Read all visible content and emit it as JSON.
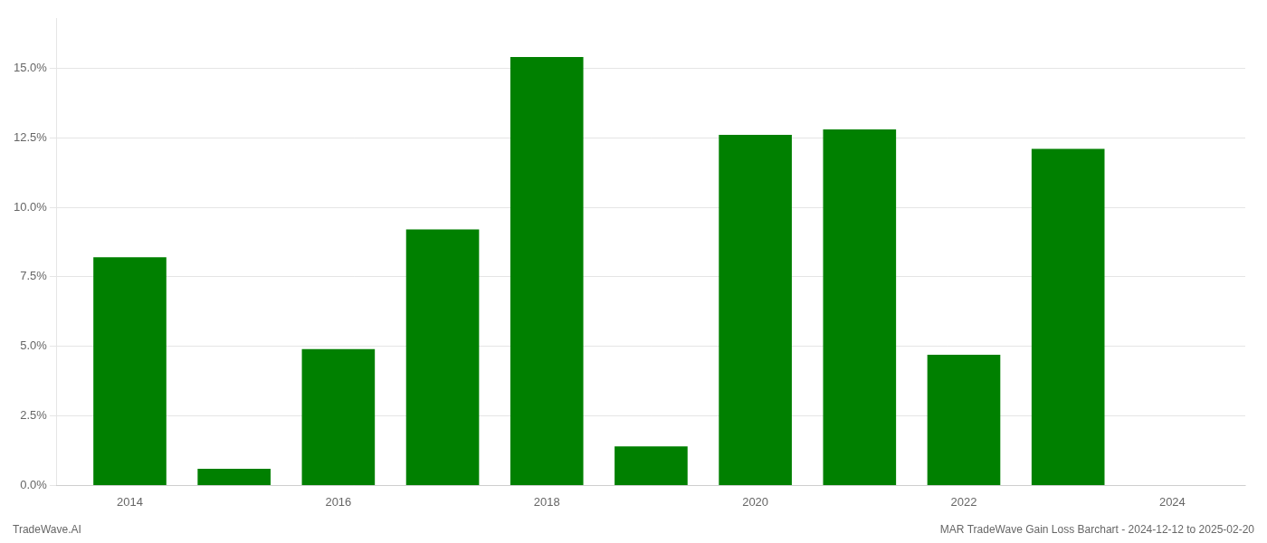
{
  "chart_data": {
    "type": "bar",
    "x": [
      2014,
      2015,
      2016,
      2017,
      2018,
      2019,
      2020,
      2021,
      2022,
      2023
    ],
    "values": [
      0.082,
      0.006,
      0.049,
      0.092,
      0.154,
      0.014,
      0.126,
      0.128,
      0.047,
      0.121
    ],
    "color": "#008000",
    "xlim": [
      2013.3,
      2024.7
    ],
    "xticks": [
      2014,
      2016,
      2018,
      2020,
      2022,
      2024
    ],
    "ylim": [
      0,
      0.168
    ],
    "yticks": [
      {
        "value": 0.0,
        "label": "0.0%"
      },
      {
        "value": 0.025,
        "label": "2.5%"
      },
      {
        "value": 0.05,
        "label": "5.0%"
      },
      {
        "value": 0.075,
        "label": "7.5%"
      },
      {
        "value": 0.1,
        "label": "10.0%"
      },
      {
        "value": 0.125,
        "label": "12.5%"
      },
      {
        "value": 0.15,
        "label": "15.0%"
      }
    ],
    "grid": "y",
    "annotations": [
      "TradeWave.AI",
      "MAR TradeWave Gain Loss Barchart - 2024-12-12 to 2025-02-20"
    ]
  }
}
